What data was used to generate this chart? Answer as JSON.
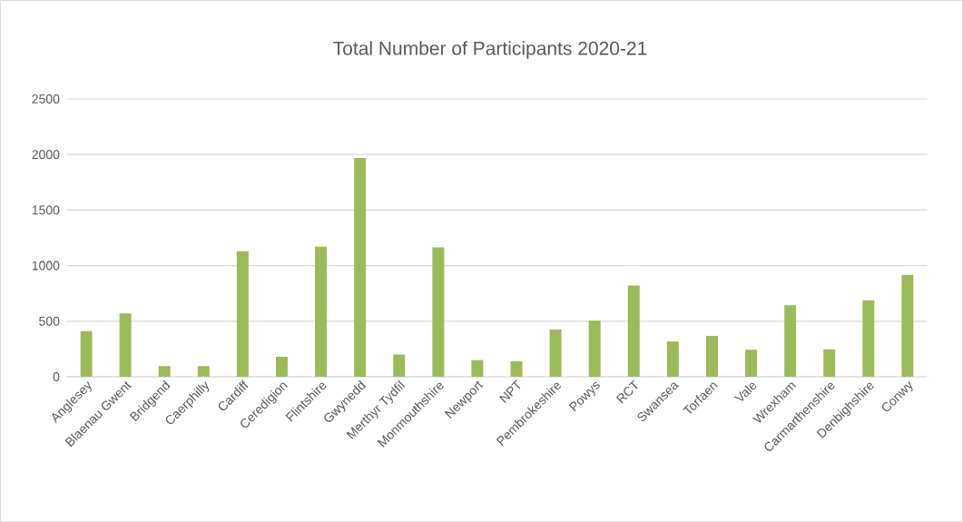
{
  "chart_data": {
    "type": "bar",
    "title": "Total Number of Participants 2020-21",
    "categories": [
      "Anglesey",
      "Blaenau Gwent",
      "Bridgend",
      "Caerphilly",
      "Cardiff",
      "Ceredigion",
      "Flintshire",
      "Gwynedd",
      "Merthyr Tydfil",
      "Monmouthshire",
      "Newport",
      "NPT",
      "Pembrokeshire",
      "Powys",
      "RCT",
      "Swansea",
      "Torfaen",
      "Vale",
      "Wrexham",
      "Carmarthenshire",
      "Denbighshire",
      "Conwy"
    ],
    "values": [
      410,
      570,
      95,
      95,
      1130,
      180,
      1170,
      1970,
      200,
      1165,
      150,
      140,
      425,
      505,
      820,
      317,
      368,
      243,
      644,
      248,
      688,
      917
    ],
    "color": "#9bbb59",
    "ylim": [
      0,
      2500
    ],
    "yticks": [
      0,
      500,
      1000,
      1500,
      2000,
      2500
    ],
    "grid": true
  }
}
